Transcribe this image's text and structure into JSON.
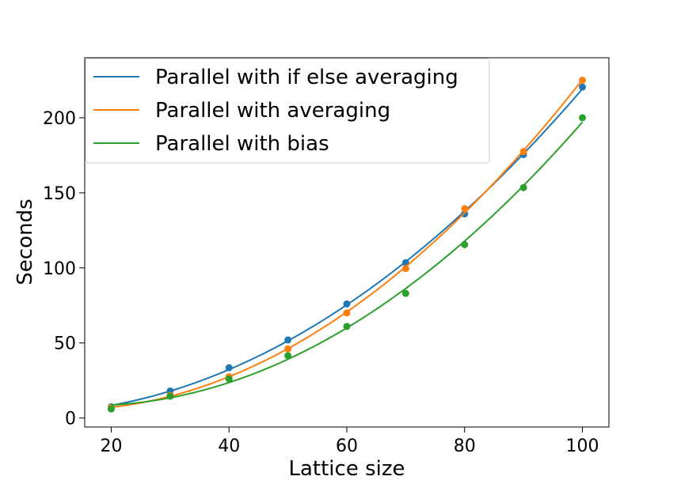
{
  "chart_data": {
    "type": "scatter",
    "xlabel": "Lattice size",
    "ylabel": "Seconds",
    "xlim": [
      15.5,
      104.5
    ],
    "ylim": [
      -6,
      240
    ],
    "xticks": [
      20,
      40,
      60,
      80,
      100
    ],
    "yticks": [
      0,
      50,
      100,
      150,
      200
    ],
    "legend_position": "top-left",
    "x": [
      20,
      30,
      40,
      50,
      60,
      70,
      80,
      90,
      100
    ],
    "series": [
      {
        "name": "Parallel with if else averaging",
        "color": "#1f77b4",
        "points": [
          7.5,
          18,
          33.5,
          52,
          76,
          103.5,
          136,
          175.5,
          220.5
        ],
        "fit": "quadratic"
      },
      {
        "name": "Parallel with averaging",
        "color": "#ff7f0e",
        "points": [
          7,
          15,
          27.5,
          46,
          70,
          99.5,
          139.5,
          177.5,
          225
        ],
        "fit": "quadratic"
      },
      {
        "name": "Parallel with bias",
        "color": "#2ca02c",
        "points": [
          6,
          14.5,
          26,
          41.5,
          61,
          83,
          115.5,
          153.5,
          200
        ],
        "fit": "quadratic"
      }
    ]
  }
}
